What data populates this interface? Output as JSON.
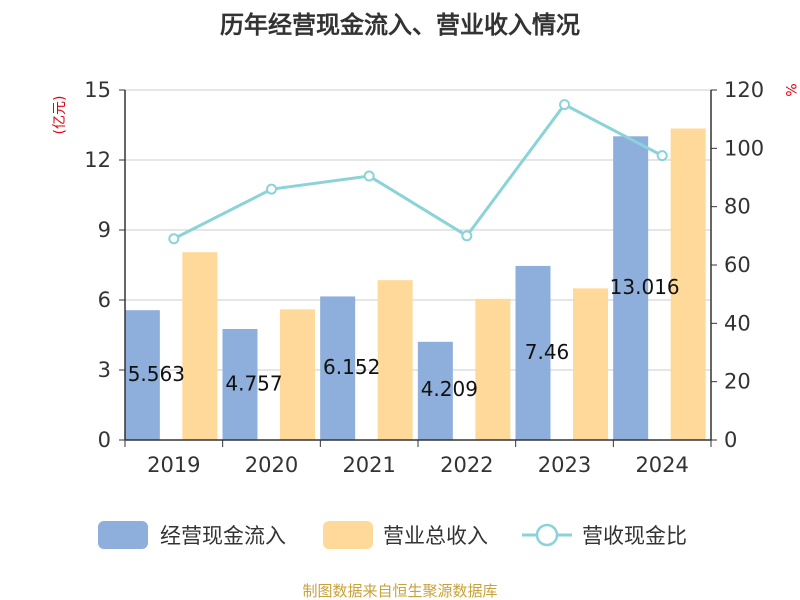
{
  "chart_data": {
    "type": "bar",
    "title": "历年经营现金流入、营业收入情况",
    "categories": [
      "2019",
      "2020",
      "2021",
      "2022",
      "2023",
      "2024"
    ],
    "y_left": {
      "unit_label": "(亿元)",
      "range": [
        0,
        15
      ],
      "ticks": [
        "0",
        "3",
        "6",
        "9",
        "12",
        "15"
      ]
    },
    "y_right": {
      "unit_label": "%",
      "range": [
        0,
        120
      ],
      "ticks": [
        "0",
        "20",
        "40",
        "60",
        "80",
        "100",
        "120"
      ]
    },
    "grid": true,
    "legend_position": "bottom",
    "series": [
      {
        "name": "经营现金流入",
        "kind": "bar",
        "axis": "left",
        "color": "#8eaedb",
        "values": [
          5.563,
          4.757,
          6.152,
          4.209,
          7.46,
          13.016
        ],
        "labels": [
          "5.563",
          "4.757",
          "6.152",
          "4.209",
          "7.46",
          "13.016"
        ]
      },
      {
        "name": "营业总收入",
        "kind": "bar",
        "axis": "left",
        "color": "#ffd99a",
        "values": [
          8.05,
          5.6,
          6.85,
          6.05,
          6.5,
          13.35
        ]
      },
      {
        "name": "营收现金比",
        "kind": "line",
        "axis": "right",
        "color": "#8ad3d8",
        "values": [
          69,
          86,
          90.5,
          70,
          115,
          97.5
        ]
      }
    ],
    "source": "制图数据来自恒生聚源数据库"
  }
}
